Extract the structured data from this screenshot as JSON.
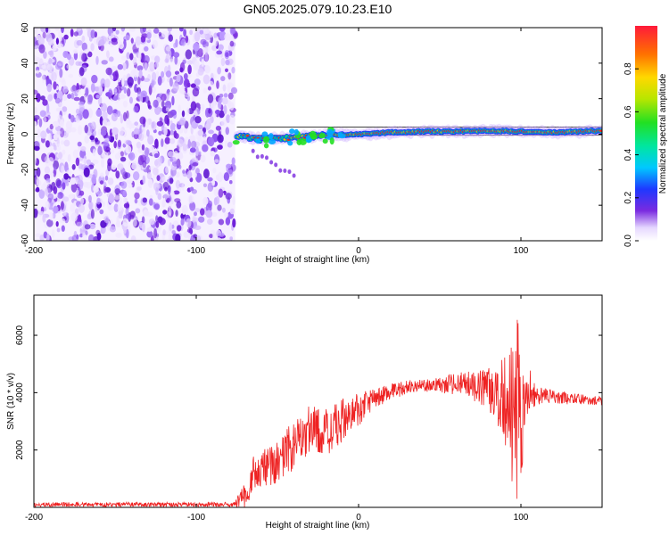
{
  "title": "GN05.2025.079.10.23.E10",
  "colors": {
    "snr_line": "#ee2222",
    "noise_purple": "#7a2be0",
    "trace_core": "#ff1a1a",
    "trace_mid": "#00d18a",
    "trace_edge": "#1e38ff",
    "axis": "#000000"
  },
  "chart_data": [
    {
      "type": "heatmap",
      "xlabel": "Height of straight line (km)",
      "ylabel": "Frequency (Hz)",
      "xlim": [
        -200,
        150
      ],
      "ylim": [
        -60,
        60
      ],
      "xticks": [
        "-200",
        "-100",
        "0",
        "100"
      ],
      "xtick_values": [
        -200,
        -100,
        0,
        100
      ],
      "yticks": [
        "60",
        "40",
        "20",
        "0",
        "-20",
        "-40",
        "-60"
      ],
      "ytick_values": [
        60,
        40,
        20,
        0,
        -20,
        -40,
        -60
      ],
      "noise_region_x": [
        -200,
        -76
      ],
      "trace": {
        "start_x": -75,
        "end_x": 150,
        "freq_points": [
          [
            -75,
            -1
          ],
          [
            -60,
            -3
          ],
          [
            -40,
            -2
          ],
          [
            -20,
            -0.5
          ],
          [
            0,
            0
          ],
          [
            20,
            1
          ],
          [
            40,
            1.5
          ],
          [
            60,
            1.5
          ],
          [
            80,
            2
          ],
          [
            100,
            1.5
          ],
          [
            120,
            1
          ],
          [
            150,
            2
          ]
        ]
      },
      "colorbar": {
        "label": "Normalized spectral amplitude",
        "ticks": [
          "0.0",
          "0.2",
          "0.4",
          "0.6",
          "0.8"
        ],
        "tick_values": [
          0.0,
          0.2,
          0.4,
          0.6,
          0.8
        ],
        "range": [
          0,
          1
        ]
      },
      "grid": false
    },
    {
      "type": "line",
      "xlabel": "Height of straight line (km)",
      "ylabel": "SNR (10 * v/v)",
      "xlim": [
        -200,
        150
      ],
      "ylim": [
        0,
        7400
      ],
      "xticks": [
        "-200",
        "-100",
        "0",
        "100"
      ],
      "xtick_values": [
        -200,
        -100,
        0,
        100
      ],
      "yticks": [
        "2000",
        "4000",
        "6000"
      ],
      "ytick_values": [
        2000,
        4000,
        6000
      ],
      "grid": false,
      "series": [
        {
          "values_note": "",
          "envelope": [
            [
              -200,
              100
            ],
            [
              -76,
              100
            ],
            [
              -68,
              500
            ],
            [
              -65,
              1200
            ],
            [
              -60,
              1300
            ],
            [
              -50,
              1600
            ],
            [
              -40,
              2200
            ],
            [
              -30,
              2700
            ],
            [
              -20,
              2600
            ],
            [
              -10,
              3000
            ],
            [
              0,
              3400
            ],
            [
              10,
              3800
            ],
            [
              20,
              4050
            ],
            [
              30,
              4200
            ],
            [
              40,
              4250
            ],
            [
              50,
              4250
            ],
            [
              60,
              4300
            ],
            [
              70,
              4250
            ],
            [
              80,
              4100
            ],
            [
              90,
              3700
            ],
            [
              95,
              3300
            ],
            [
              100,
              3600
            ],
            [
              105,
              3900
            ],
            [
              110,
              3950
            ],
            [
              120,
              3850
            ],
            [
              130,
              3800
            ],
            [
              140,
              3750
            ],
            [
              150,
              3700
            ]
          ],
          "noise_amplitude": [
            [
              -200,
              80
            ],
            [
              -77,
              80
            ],
            [
              -70,
              500
            ],
            [
              -40,
              900
            ],
            [
              -10,
              800
            ],
            [
              10,
              350
            ],
            [
              40,
              200
            ],
            [
              70,
              500
            ],
            [
              85,
              900
            ],
            [
              95,
              2600
            ],
            [
              105,
              600
            ],
            [
              115,
              250
            ],
            [
              150,
              150
            ]
          ]
        }
      ]
    }
  ]
}
